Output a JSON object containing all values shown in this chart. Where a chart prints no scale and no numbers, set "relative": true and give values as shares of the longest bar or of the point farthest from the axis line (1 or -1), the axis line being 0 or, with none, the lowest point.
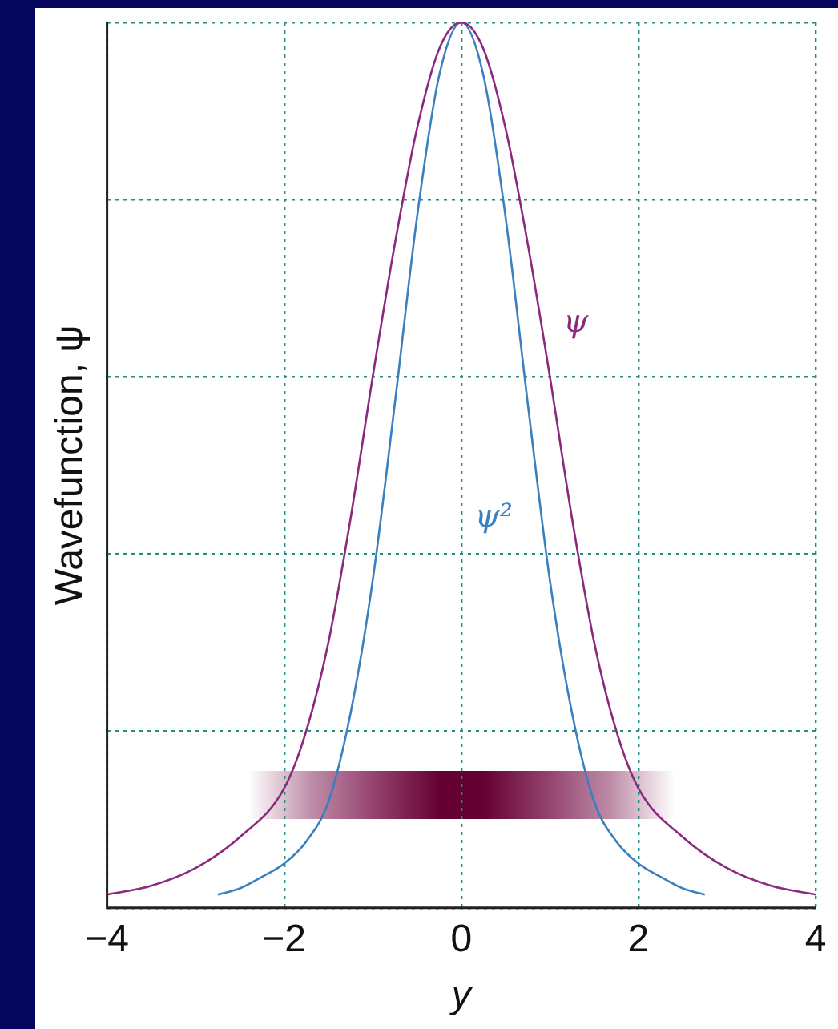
{
  "chart_data": {
    "type": "line",
    "xlabel": "y",
    "ylabel": "Wavefunction, ψ",
    "relative": true,
    "xlim": [
      -4,
      4
    ],
    "xticks": [
      -4,
      -2,
      0,
      2,
      4
    ],
    "grid": true,
    "legend": false,
    "marker": "none",
    "line_style": "solid",
    "series": [
      {
        "name": "ψ",
        "color": "#8b2a7c",
        "x": [
          -4,
          -3.5,
          -3,
          -2.5,
          -2,
          -1.75,
          -1.5,
          -1.25,
          -1,
          -0.75,
          -0.5,
          -0.25,
          0,
          0.25,
          0.5,
          0.75,
          1,
          1.25,
          1.5,
          1.75,
          2,
          2.5,
          3,
          3.5,
          4
        ],
        "values": [
          0.015,
          0.025,
          0.045,
          0.08,
          0.135,
          0.2,
          0.3,
          0.44,
          0.6,
          0.75,
          0.88,
          0.97,
          1,
          0.97,
          0.88,
          0.75,
          0.6,
          0.44,
          0.3,
          0.2,
          0.135,
          0.08,
          0.045,
          0.025,
          0.015
        ]
      },
      {
        "name": "ψ²",
        "color": "#3a7fc0",
        "x": [
          -2.75,
          -2.5,
          -2.25,
          -2,
          -1.75,
          -1.5,
          -1.25,
          -1,
          -0.75,
          -0.5,
          -0.25,
          0,
          0.25,
          0.5,
          0.75,
          1,
          1.25,
          1.5,
          1.75,
          2,
          2.25,
          2.5,
          2.75
        ],
        "values": [
          0.015,
          0.022,
          0.035,
          0.05,
          0.075,
          0.12,
          0.22,
          0.37,
          0.57,
          0.78,
          0.94,
          1,
          0.94,
          0.78,
          0.57,
          0.37,
          0.22,
          0.12,
          0.075,
          0.05,
          0.035,
          0.022,
          0.015
        ]
      }
    ]
  }
}
